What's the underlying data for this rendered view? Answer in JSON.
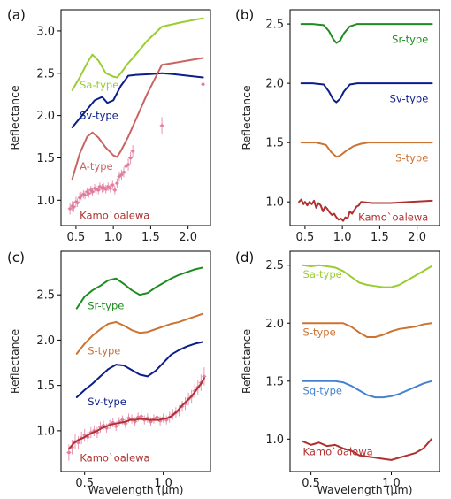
{
  "colors": {
    "sa": "#9acd32",
    "sv": "#0b1e8a",
    "a": "#c86464",
    "sr": "#1e8c1e",
    "s": "#cd7332",
    "sq": "#4682d2",
    "kamo": "#b03030",
    "kamo_pts": "#e07a9e"
  },
  "chart_data": [
    {
      "panel": "(a)",
      "type": "line",
      "ylabel": "Reflectance",
      "xlabel": "",
      "xlim": [
        0.3,
        2.3
      ],
      "ylim": [
        0.7,
        3.25
      ],
      "xticks": [
        0.5,
        1.0,
        1.5,
        2.0
      ],
      "xtick_labels": [
        "0.5",
        "1.0",
        "1.5",
        "2.0"
      ],
      "yticks": [
        1.0,
        1.5,
        2.0,
        2.5,
        3.0
      ],
      "ytick_labels": [
        "1.0",
        "1.5",
        "2.0",
        "2.5",
        "3.0"
      ],
      "series": [
        {
          "name": "Sa-type",
          "color_key": "sa",
          "x": [
            0.45,
            0.55,
            0.65,
            0.72,
            0.8,
            0.9,
            1.0,
            1.05,
            1.1,
            1.2,
            1.3,
            1.45,
            1.65,
            1.9,
            2.2
          ],
          "y": [
            2.3,
            2.45,
            2.62,
            2.72,
            2.65,
            2.5,
            2.46,
            2.45,
            2.5,
            2.62,
            2.72,
            2.88,
            3.05,
            3.1,
            3.15
          ]
        },
        {
          "name": "Sv-type",
          "color_key": "sv",
          "x": [
            0.45,
            0.6,
            0.75,
            0.85,
            0.92,
            1.0,
            1.1,
            1.2,
            1.3,
            1.5,
            1.65,
            1.8,
            2.0,
            2.2
          ],
          "y": [
            1.86,
            2.02,
            2.18,
            2.22,
            2.15,
            2.18,
            2.35,
            2.47,
            2.48,
            2.49,
            2.5,
            2.49,
            2.47,
            2.45
          ]
        },
        {
          "name": "A-type",
          "color_key": "a",
          "x": [
            0.45,
            0.55,
            0.65,
            0.72,
            0.8,
            0.9,
            1.0,
            1.05,
            1.1,
            1.2,
            1.3,
            1.45,
            1.65,
            1.8,
            2.0,
            2.2
          ],
          "y": [
            1.25,
            1.55,
            1.75,
            1.8,
            1.74,
            1.62,
            1.53,
            1.51,
            1.58,
            1.75,
            1.95,
            2.25,
            2.6,
            2.62,
            2.65,
            2.68
          ]
        }
      ],
      "points": {
        "name": "Kamo`oalewa",
        "x": [
          0.42,
          0.45,
          0.47,
          0.5,
          0.52,
          0.55,
          0.57,
          0.6,
          0.62,
          0.65,
          0.67,
          0.7,
          0.72,
          0.75,
          0.77,
          0.8,
          0.82,
          0.85,
          0.87,
          0.9,
          0.93,
          0.96,
          0.99,
          1.02,
          1.05,
          1.08,
          1.11,
          1.14,
          1.17,
          1.2,
          1.23,
          1.26,
          1.65,
          2.2
        ],
        "y": [
          0.9,
          0.93,
          0.92,
          0.98,
          0.97,
          1.03,
          1.05,
          1.07,
          1.06,
          1.1,
          1.08,
          1.12,
          1.1,
          1.14,
          1.13,
          1.12,
          1.16,
          1.14,
          1.15,
          1.13,
          1.16,
          1.14,
          1.18,
          1.12,
          1.2,
          1.28,
          1.3,
          1.33,
          1.4,
          1.42,
          1.5,
          1.58,
          1.88,
          2.37
        ],
        "err": [
          0.07,
          0.06,
          0.06,
          0.06,
          0.05,
          0.06,
          0.05,
          0.05,
          0.05,
          0.05,
          0.05,
          0.05,
          0.05,
          0.05,
          0.05,
          0.05,
          0.05,
          0.05,
          0.05,
          0.05,
          0.05,
          0.05,
          0.05,
          0.05,
          0.06,
          0.06,
          0.06,
          0.06,
          0.07,
          0.07,
          0.07,
          0.07,
          0.1,
          0.2
        ]
      },
      "labels": [
        {
          "text": "Sa-type",
          "color_key": "sa",
          "x": 0.55,
          "y": 2.36
        },
        {
          "text": "Sv-type",
          "color_key": "sv",
          "x": 0.55,
          "y": 2.0
        },
        {
          "text": "A-type",
          "color_key": "a",
          "x": 0.55,
          "y": 1.4
        },
        {
          "text": "Kamo`oalewa",
          "color_key": "kamo",
          "x": 0.55,
          "y": 0.82
        }
      ]
    },
    {
      "panel": "(b)",
      "type": "line",
      "ylabel": "Reflectance",
      "xlabel": "",
      "xlim": [
        0.3,
        2.3
      ],
      "ylim": [
        0.8,
        2.62
      ],
      "xticks": [
        0.5,
        1.0,
        1.5,
        2.0
      ],
      "xtick_labels": [
        "0.5",
        "1.0",
        "1.5",
        "2.0"
      ],
      "yticks": [
        1.0,
        1.5,
        2.0,
        2.5
      ],
      "ytick_labels": [
        "1.0",
        "1.5",
        "2.0",
        "2.5"
      ],
      "series": [
        {
          "name": "Sr-type",
          "color_key": "sr",
          "x": [
            0.45,
            0.6,
            0.75,
            0.82,
            0.88,
            0.92,
            0.97,
            1.02,
            1.1,
            1.2,
            1.3,
            1.6,
            2.0,
            2.2
          ],
          "y": [
            2.5,
            2.5,
            2.49,
            2.44,
            2.37,
            2.34,
            2.36,
            2.42,
            2.48,
            2.5,
            2.5,
            2.5,
            2.5,
            2.5
          ]
        },
        {
          "name": "Sv-type",
          "color_key": "sv",
          "x": [
            0.45,
            0.6,
            0.75,
            0.82,
            0.88,
            0.92,
            0.97,
            1.02,
            1.1,
            1.2,
            1.3,
            1.6,
            2.0,
            2.2
          ],
          "y": [
            2.0,
            2.0,
            1.99,
            1.93,
            1.86,
            1.84,
            1.87,
            1.93,
            1.99,
            2.0,
            2.0,
            2.0,
            2.0,
            2.0
          ]
        },
        {
          "name": "S-type",
          "color_key": "s",
          "x": [
            0.45,
            0.65,
            0.78,
            0.85,
            0.92,
            0.97,
            1.05,
            1.15,
            1.25,
            1.35,
            1.6,
            2.0,
            2.2
          ],
          "y": [
            1.5,
            1.5,
            1.48,
            1.42,
            1.38,
            1.39,
            1.43,
            1.47,
            1.49,
            1.5,
            1.5,
            1.5,
            1.5
          ]
        },
        {
          "name": "Kamo`oalewa",
          "color_key": "kamo",
          "x": [
            0.42,
            0.45,
            0.48,
            0.5,
            0.53,
            0.56,
            0.59,
            0.62,
            0.65,
            0.68,
            0.71,
            0.74,
            0.77,
            0.8,
            0.83,
            0.86,
            0.89,
            0.92,
            0.95,
            0.98,
            1.01,
            1.04,
            1.07,
            1.1,
            1.13,
            1.16,
            1.19,
            1.22,
            1.25,
            1.4,
            1.65,
            1.9,
            2.2
          ],
          "y": [
            1.0,
            1.02,
            0.98,
            1.0,
            0.97,
            1.0,
            0.98,
            1.01,
            0.95,
            0.99,
            0.97,
            0.92,
            0.96,
            0.94,
            0.91,
            0.89,
            0.9,
            0.87,
            0.85,
            0.86,
            0.84,
            0.87,
            0.86,
            0.92,
            0.9,
            0.93,
            0.96,
            0.97,
            1.0,
            0.99,
            0.99,
            1.0,
            1.01
          ]
        }
      ],
      "labels": [
        {
          "text": "Sr-type",
          "color_key": "sr",
          "x": 2.15,
          "y": 2.37
        },
        {
          "text": "Sv-type",
          "color_key": "sv",
          "x": 2.15,
          "y": 1.87
        },
        {
          "text": "S-type",
          "color_key": "s",
          "x": 2.15,
          "y": 1.37
        },
        {
          "text": "Kamo`oalewa",
          "color_key": "kamo",
          "x": 2.15,
          "y": 0.87
        }
      ]
    },
    {
      "panel": "(c)",
      "type": "line",
      "ylabel": "Reflectance",
      "xlabel": "Wavelength (μm)",
      "xlim": [
        0.35,
        1.3
      ],
      "ylim": [
        0.55,
        2.98
      ],
      "xticks": [
        0.5,
        1.0
      ],
      "xtick_labels": [
        "0.5",
        "1.0"
      ],
      "yticks": [
        1.0,
        1.5,
        2.0,
        2.5
      ],
      "ytick_labels": [
        "1.0",
        "1.5",
        "2.0",
        "2.5"
      ],
      "series": [
        {
          "name": "Sr-type",
          "color_key": "sr",
          "x": [
            0.45,
            0.5,
            0.55,
            0.6,
            0.65,
            0.7,
            0.75,
            0.8,
            0.85,
            0.9,
            0.95,
            1.0,
            1.05,
            1.1,
            1.15,
            1.2,
            1.25
          ],
          "y": [
            2.35,
            2.48,
            2.55,
            2.6,
            2.66,
            2.68,
            2.62,
            2.55,
            2.5,
            2.52,
            2.58,
            2.63,
            2.68,
            2.72,
            2.75,
            2.78,
            2.8
          ]
        },
        {
          "name": "S-type",
          "color_key": "s",
          "x": [
            0.45,
            0.5,
            0.55,
            0.6,
            0.65,
            0.7,
            0.75,
            0.8,
            0.85,
            0.9,
            0.95,
            1.0,
            1.05,
            1.1,
            1.15,
            1.2,
            1.25
          ],
          "y": [
            1.85,
            1.96,
            2.05,
            2.12,
            2.18,
            2.2,
            2.16,
            2.11,
            2.08,
            2.09,
            2.12,
            2.15,
            2.18,
            2.2,
            2.23,
            2.26,
            2.29
          ]
        },
        {
          "name": "Sv-type",
          "color_key": "sv",
          "x": [
            0.45,
            0.5,
            0.55,
            0.6,
            0.65,
            0.7,
            0.75,
            0.8,
            0.85,
            0.9,
            0.95,
            1.0,
            1.05,
            1.1,
            1.15,
            1.2,
            1.25
          ],
          "y": [
            1.37,
            1.45,
            1.52,
            1.6,
            1.68,
            1.73,
            1.72,
            1.67,
            1.62,
            1.6,
            1.66,
            1.75,
            1.84,
            1.89,
            1.93,
            1.96,
            1.98
          ]
        },
        {
          "name": "Kamo`oalewa",
          "color_key": "kamo",
          "x": [
            0.4,
            0.43,
            0.46,
            0.49,
            0.52,
            0.55,
            0.58,
            0.61,
            0.64,
            0.67,
            0.7,
            0.73,
            0.76,
            0.79,
            0.82,
            0.85,
            0.88,
            0.91,
            0.94,
            0.97,
            1.0,
            1.03,
            1.06,
            1.09,
            1.12,
            1.15,
            1.18,
            1.21,
            1.24,
            1.26
          ],
          "y": [
            0.8,
            0.86,
            0.9,
            0.92,
            0.95,
            0.98,
            1.0,
            1.03,
            1.05,
            1.07,
            1.08,
            1.09,
            1.1,
            1.12,
            1.12,
            1.13,
            1.13,
            1.12,
            1.12,
            1.12,
            1.13,
            1.14,
            1.17,
            1.22,
            1.28,
            1.33,
            1.38,
            1.45,
            1.52,
            1.58
          ]
        }
      ],
      "points": {
        "name": "Kamo`oalewa",
        "x": [
          0.4,
          0.42,
          0.44,
          0.46,
          0.48,
          0.5,
          0.52,
          0.54,
          0.56,
          0.58,
          0.6,
          0.62,
          0.64,
          0.66,
          0.68,
          0.7,
          0.72,
          0.74,
          0.76,
          0.78,
          0.8,
          0.82,
          0.84,
          0.86,
          0.88,
          0.9,
          0.92,
          0.94,
          0.96,
          0.98,
          1.0,
          1.02,
          1.04,
          1.06,
          1.08,
          1.1,
          1.12,
          1.14,
          1.16,
          1.18,
          1.2,
          1.22,
          1.24,
          1.26
        ],
        "y": [
          0.76,
          0.82,
          0.88,
          0.87,
          0.92,
          0.95,
          0.93,
          0.98,
          1.0,
          0.98,
          1.04,
          1.06,
          1.03,
          1.07,
          1.09,
          1.05,
          1.1,
          1.12,
          1.08,
          1.14,
          1.13,
          1.1,
          1.15,
          1.16,
          1.12,
          1.14,
          1.1,
          1.13,
          1.15,
          1.11,
          1.14,
          1.12,
          1.15,
          1.18,
          1.2,
          1.22,
          1.27,
          1.3,
          1.35,
          1.38,
          1.44,
          1.48,
          1.53,
          1.6
        ],
        "err": [
          0.09,
          0.08,
          0.08,
          0.07,
          0.07,
          0.07,
          0.06,
          0.06,
          0.06,
          0.06,
          0.06,
          0.05,
          0.05,
          0.05,
          0.05,
          0.05,
          0.05,
          0.05,
          0.05,
          0.05,
          0.05,
          0.05,
          0.05,
          0.05,
          0.05,
          0.05,
          0.05,
          0.05,
          0.05,
          0.05,
          0.05,
          0.05,
          0.06,
          0.06,
          0.06,
          0.06,
          0.06,
          0.07,
          0.07,
          0.07,
          0.08,
          0.08,
          0.09,
          0.1
        ]
      },
      "labels": [
        {
          "text": "Sr-type",
          "color_key": "sr",
          "x": 0.52,
          "y": 2.38
        },
        {
          "text": "S-type",
          "color_key": "s",
          "x": 0.52,
          "y": 1.88
        },
        {
          "text": "Sv-type",
          "color_key": "sv",
          "x": 0.52,
          "y": 1.32
        },
        {
          "text": "Kamo`oalewa",
          "color_key": "kamo",
          "x": 0.47,
          "y": 0.7
        }
      ]
    },
    {
      "panel": "(d)",
      "type": "line",
      "ylabel": "Reflectance",
      "xlabel": "Wavelength (μm)",
      "xlim": [
        0.37,
        1.3
      ],
      "ylim": [
        0.72,
        2.62
      ],
      "xticks": [
        0.5,
        1.0
      ],
      "xtick_labels": [
        "0.5",
        "1.0"
      ],
      "yticks": [
        1.0,
        1.5,
        2.0,
        2.5
      ],
      "ytick_labels": [
        "1.0",
        "1.5",
        "2.0",
        "2.5"
      ],
      "series": [
        {
          "name": "Sa-type",
          "color_key": "sa",
          "x": [
            0.45,
            0.5,
            0.55,
            0.6,
            0.65,
            0.7,
            0.75,
            0.8,
            0.85,
            0.9,
            0.95,
            1.0,
            1.05,
            1.1,
            1.15,
            1.2,
            1.25
          ],
          "y": [
            2.5,
            2.49,
            2.5,
            2.49,
            2.48,
            2.45,
            2.4,
            2.35,
            2.33,
            2.32,
            2.31,
            2.31,
            2.33,
            2.37,
            2.41,
            2.45,
            2.49
          ]
        },
        {
          "name": "S-type",
          "color_key": "s",
          "x": [
            0.45,
            0.55,
            0.65,
            0.7,
            0.75,
            0.8,
            0.85,
            0.9,
            0.95,
            1.0,
            1.05,
            1.1,
            1.15,
            1.2,
            1.25
          ],
          "y": [
            2.0,
            2.0,
            2.0,
            2.0,
            1.97,
            1.92,
            1.88,
            1.88,
            1.9,
            1.93,
            1.95,
            1.96,
            1.97,
            1.99,
            2.0
          ]
        },
        {
          "name": "Sq-type",
          "color_key": "sq",
          "x": [
            0.45,
            0.55,
            0.65,
            0.7,
            0.75,
            0.8,
            0.85,
            0.9,
            0.95,
            1.0,
            1.05,
            1.1,
            1.15,
            1.2,
            1.25
          ],
          "y": [
            1.5,
            1.5,
            1.5,
            1.49,
            1.46,
            1.42,
            1.38,
            1.36,
            1.36,
            1.37,
            1.39,
            1.42,
            1.45,
            1.48,
            1.5
          ]
        },
        {
          "name": "Kamo`oalewa",
          "color_key": "kamo",
          "x": [
            0.45,
            0.5,
            0.55,
            0.6,
            0.65,
            0.7,
            0.75,
            0.8,
            0.85,
            0.9,
            0.95,
            1.0,
            1.05,
            1.1,
            1.15,
            1.2,
            1.25
          ],
          "y": [
            0.98,
            0.95,
            0.97,
            0.94,
            0.95,
            0.92,
            0.9,
            0.86,
            0.85,
            0.84,
            0.83,
            0.82,
            0.84,
            0.86,
            0.88,
            0.92,
            1.0
          ]
        }
      ],
      "labels": [
        {
          "text": "Sa-type",
          "color_key": "sa",
          "x": 0.45,
          "y": 2.42
        },
        {
          "text": "S-type",
          "color_key": "s",
          "x": 0.45,
          "y": 1.92
        },
        {
          "text": "Sq-type",
          "color_key": "sq",
          "x": 0.45,
          "y": 1.42
        },
        {
          "text": "Kamo`oalewa",
          "color_key": "kamo",
          "x": 0.45,
          "y": 0.89
        }
      ]
    }
  ]
}
